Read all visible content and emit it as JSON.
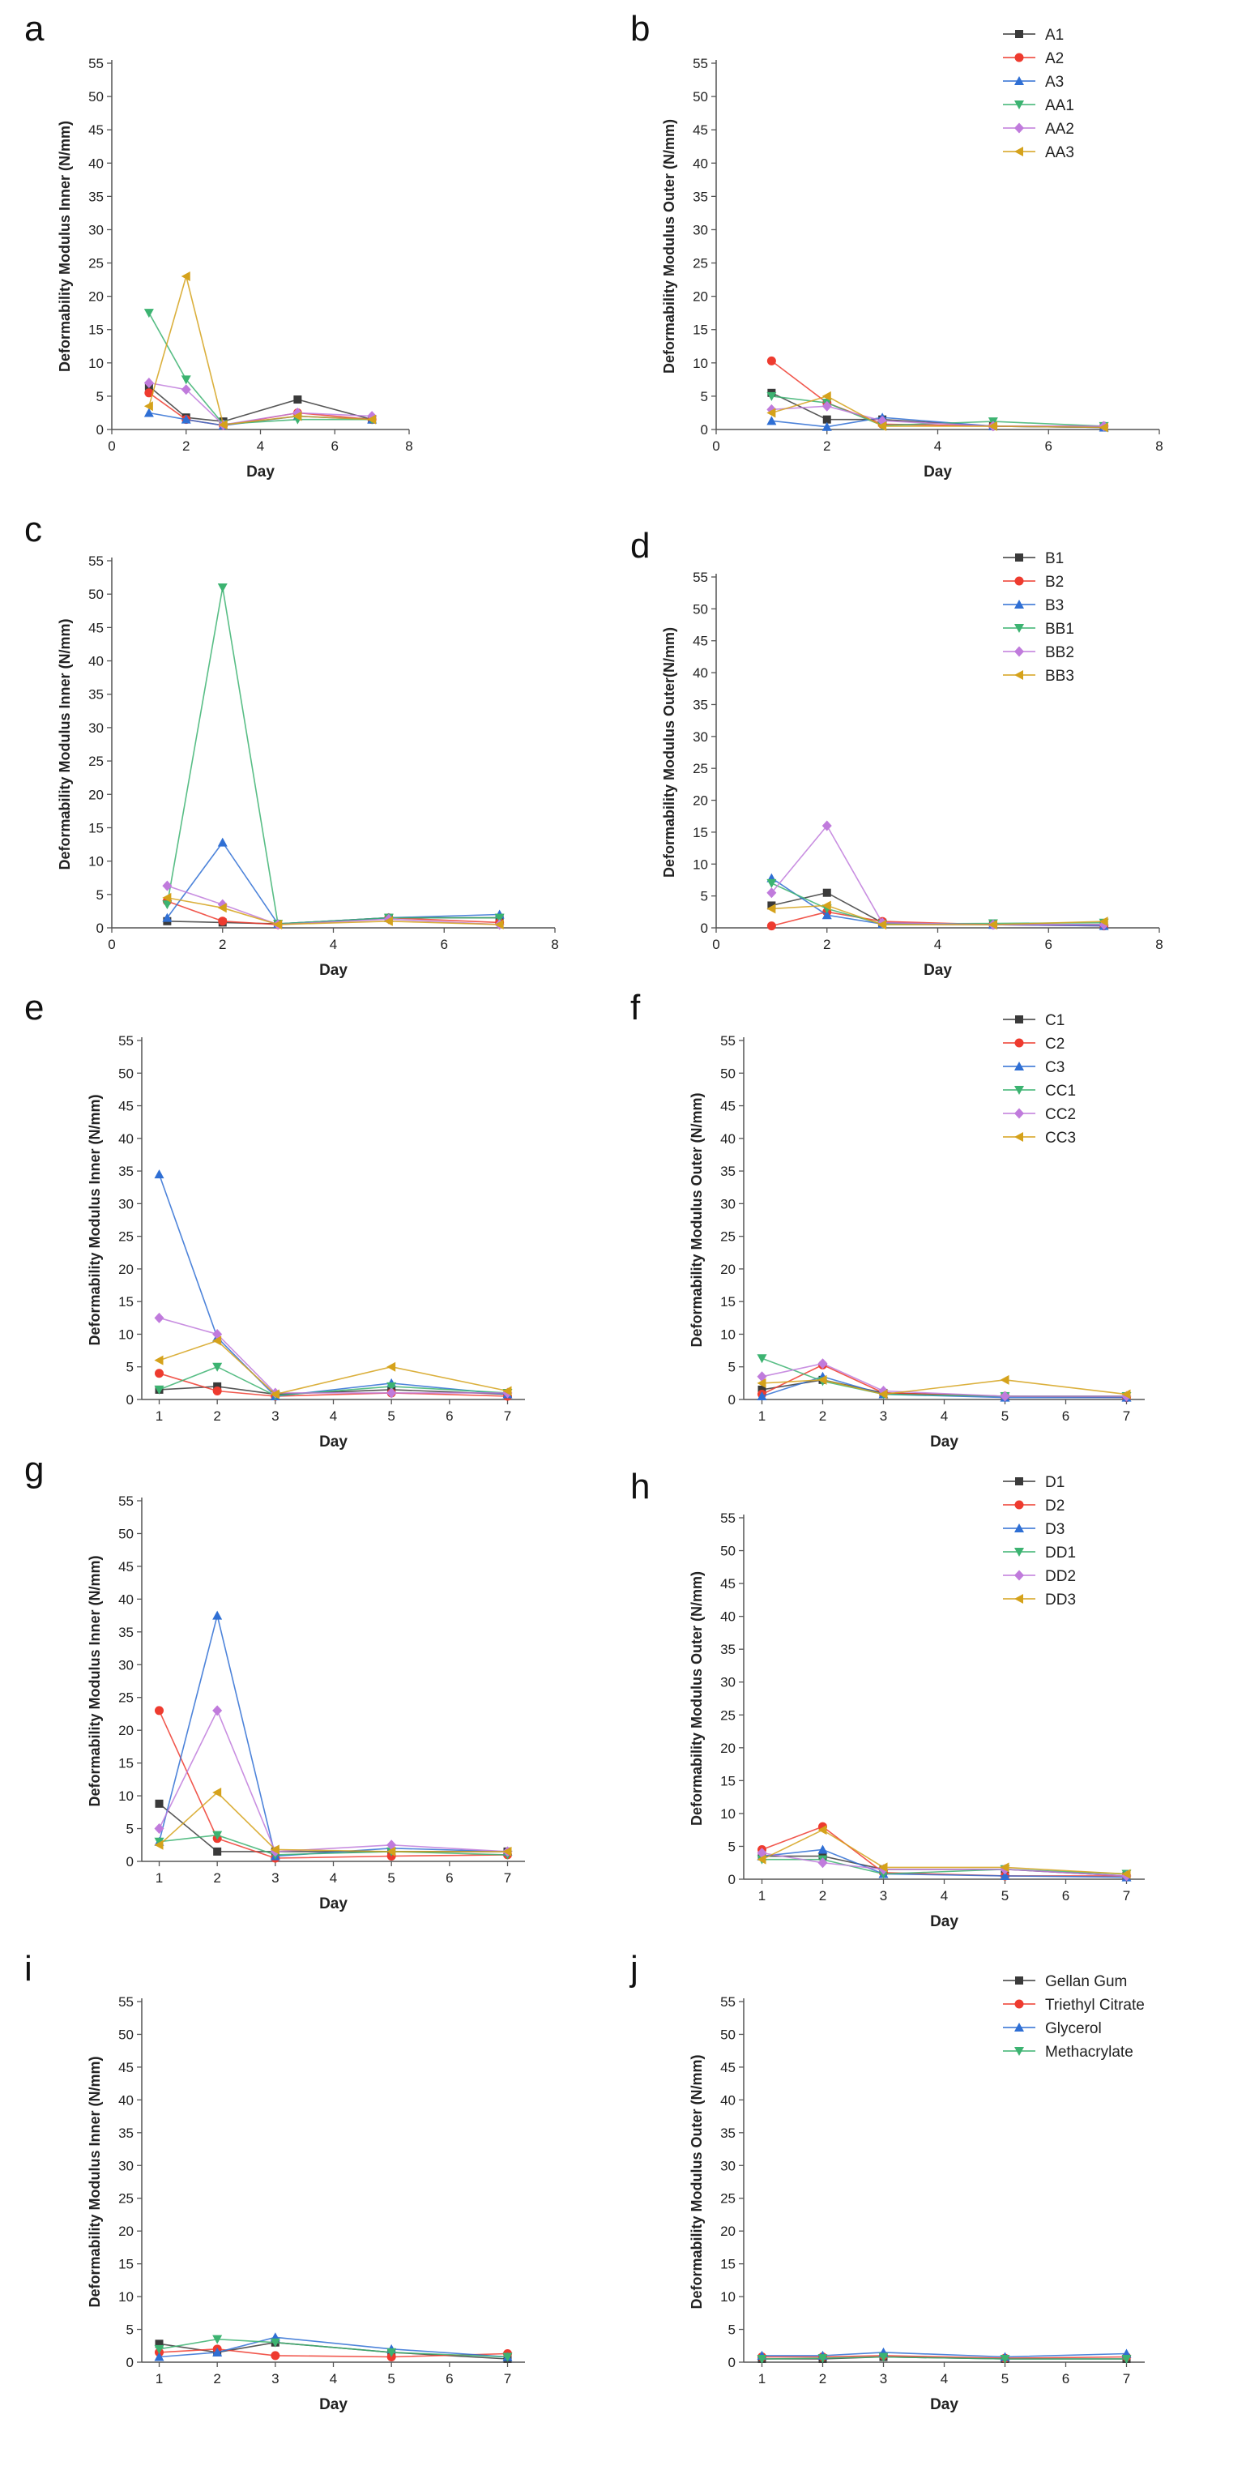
{
  "colors": {
    "series": [
      "#3a3a3a",
      "#ee3b2f",
      "#2f6fd4",
      "#3cb371",
      "#c07bdc",
      "#d5a21b"
    ],
    "axis": "#555555",
    "text": "#222222"
  },
  "legends": {
    "a": [
      "A1",
      "A2",
      "A3",
      "AA1",
      "AA2",
      "AA3"
    ],
    "d": [
      "B1",
      "B2",
      "B3",
      "BB1",
      "BB2",
      "BB3"
    ],
    "f": [
      "C1",
      "C2",
      "C3",
      "CC1",
      "CC2",
      "CC3"
    ],
    "h": [
      "D1",
      "D2",
      "D3",
      "DD1",
      "DD2",
      "DD3"
    ],
    "j": [
      "Gellan Gum",
      "Triethyl Citrate",
      "Glycerol",
      "Methacrylate"
    ]
  },
  "chart_data": [
    {
      "id": "a",
      "type": "line",
      "panel_label": "a",
      "xlabel": "Day",
      "ylabel": "Deformability Modulus Inner (N/mm)",
      "xlim": [
        0,
        8
      ],
      "ylim": [
        0,
        55
      ],
      "xticks": [
        0,
        2,
        4,
        6,
        8
      ],
      "yticks": [
        0,
        5,
        10,
        15,
        20,
        25,
        30,
        35,
        40,
        45,
        50,
        55
      ],
      "x": [
        1,
        2,
        3,
        5,
        7
      ],
      "series": [
        {
          "name": "A1",
          "values": [
            6.5,
            1.8,
            1.2,
            4.5,
            1.5
          ]
        },
        {
          "name": "A2",
          "values": [
            5.5,
            1.5,
            0.6,
            2.5,
            1.5
          ]
        },
        {
          "name": "A3",
          "values": [
            2.5,
            1.5,
            0.6,
            2.0,
            1.5
          ]
        },
        {
          "name": "AA1",
          "values": [
            17.5,
            7.5,
            0.8,
            1.5,
            1.5
          ]
        },
        {
          "name": "AA2",
          "values": [
            7.0,
            6.0,
            0.7,
            2.5,
            2.0
          ]
        },
        {
          "name": "AA3",
          "values": [
            3.5,
            23.0,
            0.7,
            2.0,
            1.5
          ]
        }
      ]
    },
    {
      "id": "b",
      "type": "line",
      "panel_label": "b",
      "xlabel": "Day",
      "ylabel": "Deformability Modulus Outer (N/mm)",
      "xlim": [
        0,
        8
      ],
      "ylim": [
        0,
        55
      ],
      "xticks": [
        0,
        2,
        4,
        6,
        8
      ],
      "yticks": [
        0,
        5,
        10,
        15,
        20,
        25,
        30,
        35,
        40,
        45,
        50,
        55
      ],
      "x": [
        1,
        2,
        3,
        5,
        7
      ],
      "series": [
        {
          "name": "A1",
          "values": [
            5.5,
            1.5,
            1.5,
            0.5,
            0.3
          ]
        },
        {
          "name": "A2",
          "values": [
            10.3,
            4.0,
            0.8,
            0.5,
            0.5
          ]
        },
        {
          "name": "A3",
          "values": [
            1.3,
            0.4,
            1.8,
            0.5,
            0.3
          ]
        },
        {
          "name": "AA1",
          "values": [
            5.0,
            4.0,
            0.6,
            1.2,
            0.5
          ]
        },
        {
          "name": "AA2",
          "values": [
            3.0,
            3.5,
            1.3,
            0.5,
            0.5
          ]
        },
        {
          "name": "AA3",
          "values": [
            2.5,
            5.0,
            0.5,
            0.5,
            0.3
          ]
        }
      ]
    },
    {
      "id": "c",
      "type": "line",
      "panel_label": "c",
      "xlabel": "Day",
      "ylabel": "Deformability Modulus Inner (N/mm)",
      "xlim": [
        0,
        8
      ],
      "ylim": [
        0,
        55
      ],
      "xticks": [
        0,
        2,
        4,
        6,
        8
      ],
      "yticks": [
        0,
        5,
        10,
        15,
        20,
        25,
        30,
        35,
        40,
        45,
        50,
        55
      ],
      "x": [
        1,
        2,
        3,
        5,
        7
      ],
      "series": [
        {
          "name": "B1",
          "values": [
            1.0,
            0.8,
            0.6,
            1.5,
            1.5
          ]
        },
        {
          "name": "B2",
          "values": [
            4.0,
            1.0,
            0.5,
            1.5,
            0.8
          ]
        },
        {
          "name": "B3",
          "values": [
            1.5,
            12.8,
            0.6,
            1.5,
            2.0
          ]
        },
        {
          "name": "BB1",
          "values": [
            3.5,
            51.0,
            0.6,
            1.5,
            1.5
          ]
        },
        {
          "name": "BB2",
          "values": [
            6.3,
            3.5,
            0.5,
            1.3,
            0.5
          ]
        },
        {
          "name": "BB3",
          "values": [
            4.5,
            3.0,
            0.5,
            1.0,
            0.5
          ]
        }
      ]
    },
    {
      "id": "d",
      "type": "line",
      "panel_label": "d",
      "xlabel": "Day",
      "ylabel": "Deformability Modulus Outer(N/mm)",
      "xlim": [
        0,
        8
      ],
      "ylim": [
        0,
        55
      ],
      "xticks": [
        0,
        2,
        4,
        6,
        8
      ],
      "yticks": [
        0,
        5,
        10,
        15,
        20,
        25,
        30,
        35,
        40,
        45,
        50,
        55
      ],
      "x": [
        1,
        2,
        3,
        5,
        7
      ],
      "series": [
        {
          "name": "B1",
          "values": [
            3.5,
            5.5,
            0.8,
            0.5,
            0.5
          ]
        },
        {
          "name": "B2",
          "values": [
            0.3,
            2.5,
            1.0,
            0.5,
            0.3
          ]
        },
        {
          "name": "B3",
          "values": [
            7.8,
            2.0,
            0.6,
            0.5,
            0.3
          ]
        },
        {
          "name": "BB1",
          "values": [
            7.0,
            3.0,
            0.6,
            0.7,
            0.8
          ]
        },
        {
          "name": "BB2",
          "values": [
            5.5,
            16.0,
            0.8,
            0.5,
            0.5
          ]
        },
        {
          "name": "BB3",
          "values": [
            3.0,
            3.5,
            0.5,
            0.5,
            1.0
          ]
        }
      ]
    },
    {
      "id": "e",
      "type": "line",
      "panel_label": "e",
      "xlabel": "Day",
      "ylabel": "Deformability Modulus Inner (N/mm)",
      "xlim": [
        0.7,
        7.3
      ],
      "ylim": [
        0,
        55
      ],
      "xticks": [
        1,
        2,
        3,
        4,
        5,
        6,
        7
      ],
      "yticks": [
        0,
        5,
        10,
        15,
        20,
        25,
        30,
        35,
        40,
        45,
        50,
        55
      ],
      "x": [
        1,
        2,
        3,
        5,
        7
      ],
      "series": [
        {
          "name": "C1",
          "values": [
            1.5,
            2.0,
            0.8,
            1.5,
            0.8
          ]
        },
        {
          "name": "C2",
          "values": [
            4.0,
            1.3,
            0.5,
            1.0,
            0.5
          ]
        },
        {
          "name": "C3",
          "values": [
            34.5,
            9.5,
            0.5,
            2.5,
            0.8
          ]
        },
        {
          "name": "CC1",
          "values": [
            1.5,
            5.0,
            0.6,
            2.0,
            1.0
          ]
        },
        {
          "name": "CC2",
          "values": [
            12.5,
            10.0,
            1.0,
            1.0,
            1.0
          ]
        },
        {
          "name": "CC3",
          "values": [
            6.0,
            9.0,
            0.8,
            5.0,
            1.3
          ]
        }
      ]
    },
    {
      "id": "f",
      "type": "line",
      "panel_label": "f",
      "xlabel": "Day",
      "ylabel": "Deformability Modulus Outer (N/mm)",
      "xlim": [
        0.7,
        7.3
      ],
      "ylim": [
        0,
        55
      ],
      "xticks": [
        1,
        2,
        3,
        4,
        5,
        6,
        7
      ],
      "yticks": [
        0,
        5,
        10,
        15,
        20,
        25,
        30,
        35,
        40,
        45,
        50,
        55
      ],
      "x": [
        1,
        2,
        3,
        5,
        7
      ],
      "series": [
        {
          "name": "C1",
          "values": [
            1.5,
            3.0,
            1.0,
            0.5,
            0.5
          ]
        },
        {
          "name": "C2",
          "values": [
            0.8,
            5.3,
            1.0,
            0.5,
            0.3
          ]
        },
        {
          "name": "C3",
          "values": [
            0.5,
            3.5,
            0.8,
            0.3,
            0.3
          ]
        },
        {
          "name": "CC1",
          "values": [
            6.3,
            2.8,
            0.8,
            0.5,
            0.5
          ]
        },
        {
          "name": "CC2",
          "values": [
            3.5,
            5.5,
            1.3,
            0.5,
            0.5
          ]
        },
        {
          "name": "CC3",
          "values": [
            2.5,
            3.0,
            0.8,
            3.0,
            0.8
          ]
        }
      ]
    },
    {
      "id": "g",
      "type": "line",
      "panel_label": "g",
      "xlabel": "Day",
      "ylabel": "Deformability Modulus Inner (N/mm)",
      "xlim": [
        0.7,
        7.3
      ],
      "ylim": [
        0,
        55
      ],
      "xticks": [
        1,
        2,
        3,
        4,
        5,
        6,
        7
      ],
      "yticks": [
        0,
        5,
        10,
        15,
        20,
        25,
        30,
        35,
        40,
        45,
        50,
        55
      ],
      "x": [
        1,
        2,
        3,
        5,
        7
      ],
      "series": [
        {
          "name": "D1",
          "values": [
            8.8,
            1.5,
            1.5,
            1.5,
            1.5
          ]
        },
        {
          "name": "D2",
          "values": [
            23.0,
            3.5,
            0.5,
            0.8,
            1.0
          ]
        },
        {
          "name": "D3",
          "values": [
            3.0,
            37.5,
            0.8,
            2.0,
            1.5
          ]
        },
        {
          "name": "DD1",
          "values": [
            3.0,
            4.0,
            1.0,
            1.5,
            1.0
          ]
        },
        {
          "name": "DD2",
          "values": [
            5.0,
            23.0,
            1.5,
            2.5,
            1.5
          ]
        },
        {
          "name": "DD3",
          "values": [
            2.5,
            10.5,
            1.8,
            1.5,
            1.5
          ]
        }
      ]
    },
    {
      "id": "h",
      "type": "line",
      "panel_label": "h",
      "xlabel": "Day",
      "ylabel": "Deformability Modulus Outer (N/mm)",
      "xlim": [
        0.7,
        7.3
      ],
      "ylim": [
        0,
        55
      ],
      "xticks": [
        1,
        2,
        3,
        4,
        5,
        6,
        7
      ],
      "yticks": [
        0,
        5,
        10,
        15,
        20,
        25,
        30,
        35,
        40,
        45,
        50,
        55
      ],
      "x": [
        1,
        2,
        3,
        5,
        7
      ],
      "series": [
        {
          "name": "D1",
          "values": [
            3.5,
            3.5,
            1.5,
            1.5,
            0.5
          ]
        },
        {
          "name": "D2",
          "values": [
            4.5,
            8.0,
            1.0,
            0.5,
            0.5
          ]
        },
        {
          "name": "D3",
          "values": [
            3.5,
            4.5,
            0.8,
            0.5,
            0.3
          ]
        },
        {
          "name": "DD1",
          "values": [
            3.0,
            3.0,
            0.8,
            1.5,
            0.8
          ]
        },
        {
          "name": "DD2",
          "values": [
            4.0,
            2.5,
            1.5,
            1.5,
            0.5
          ]
        },
        {
          "name": "DD3",
          "values": [
            3.0,
            7.5,
            1.8,
            1.8,
            0.8
          ]
        }
      ]
    },
    {
      "id": "i",
      "type": "line",
      "panel_label": "i",
      "xlabel": "Day",
      "ylabel": "Deformability Modulus Inner (N/mm)",
      "xlim": [
        0.7,
        7.3
      ],
      "ylim": [
        0,
        55
      ],
      "xticks": [
        1,
        2,
        3,
        4,
        5,
        6,
        7
      ],
      "yticks": [
        0,
        5,
        10,
        15,
        20,
        25,
        30,
        35,
        40,
        45,
        50,
        55
      ],
      "x": [
        1,
        2,
        3,
        5,
        7
      ],
      "series": [
        {
          "name": "Gellan Gum",
          "values": [
            2.8,
            1.5,
            3.0,
            1.5,
            0.5
          ]
        },
        {
          "name": "Triethyl Citrate",
          "values": [
            1.5,
            2.0,
            1.0,
            0.8,
            1.3
          ]
        },
        {
          "name": "Glycerol",
          "values": [
            0.8,
            1.5,
            3.8,
            2.0,
            0.8
          ]
        },
        {
          "name": "Methacrylate",
          "values": [
            2.0,
            3.5,
            3.0,
            1.5,
            0.8
          ]
        }
      ]
    },
    {
      "id": "j",
      "type": "line",
      "panel_label": "j",
      "xlabel": "Day",
      "ylabel": "Deformability Modulus Outer (N/mm)",
      "xlim": [
        0.7,
        7.3
      ],
      "ylim": [
        0,
        55
      ],
      "xticks": [
        1,
        2,
        3,
        4,
        5,
        6,
        7
      ],
      "yticks": [
        0,
        5,
        10,
        15,
        20,
        25,
        30,
        35,
        40,
        45,
        50,
        55
      ],
      "x": [
        1,
        2,
        3,
        5,
        7
      ],
      "series": [
        {
          "name": "Gellan Gum",
          "values": [
            0.5,
            0.5,
            0.8,
            0.5,
            0.5
          ]
        },
        {
          "name": "Triethyl Citrate",
          "values": [
            0.8,
            0.8,
            1.0,
            0.6,
            0.8
          ]
        },
        {
          "name": "Glycerol",
          "values": [
            1.0,
            1.0,
            1.5,
            0.8,
            1.3
          ]
        },
        {
          "name": "Methacrylate",
          "values": [
            0.5,
            0.6,
            0.8,
            0.5,
            0.5
          ]
        }
      ]
    }
  ]
}
